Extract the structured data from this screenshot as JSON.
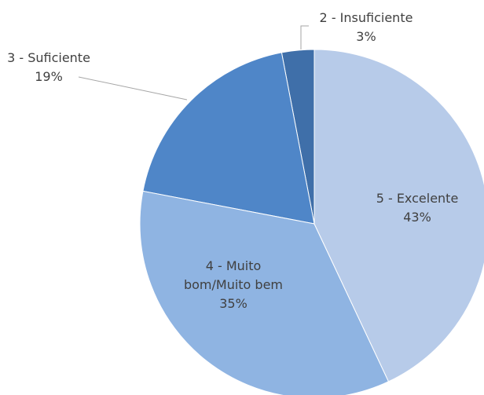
{
  "chart_data": {
    "type": "pie",
    "categories": [
      "5 - Excelente",
      "4 - Muito bom/Muito bem",
      "3 - Suficiente",
      "2 - Insuficiente"
    ],
    "values": [
      43,
      35,
      19,
      3
    ],
    "value_labels": [
      "43%",
      "35%",
      "19%",
      "3%"
    ],
    "colors": [
      "#b7cbe9",
      "#8fb4e2",
      "#4f86c8",
      "#3f6fa9"
    ]
  }
}
